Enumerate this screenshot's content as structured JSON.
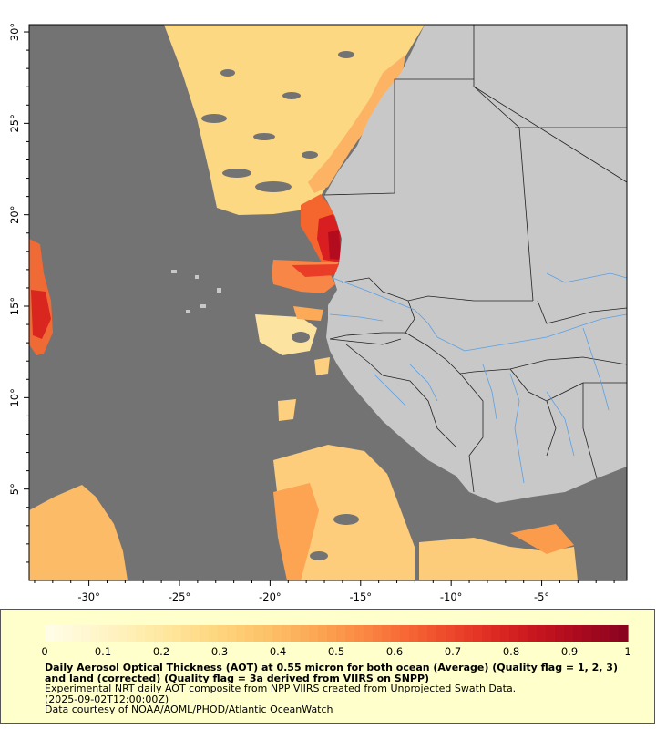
{
  "map": {
    "x_ticks": [
      {
        "value": -30,
        "label": "-30°"
      },
      {
        "value": -25,
        "label": "-25°"
      },
      {
        "value": -20,
        "label": "-20°"
      },
      {
        "value": -15,
        "label": "-15°"
      },
      {
        "value": -10,
        "label": "-10°"
      },
      {
        "value": -5,
        "label": "-5°"
      }
    ],
    "y_ticks": [
      {
        "value": 30,
        "label": "30°"
      },
      {
        "value": 25,
        "label": "25°"
      },
      {
        "value": 20,
        "label": "20°"
      },
      {
        "value": 15,
        "label": "15°"
      },
      {
        "value": 10,
        "label": "10°"
      },
      {
        "value": 5,
        "label": "5°"
      }
    ],
    "colors": {
      "no_data": "#737373",
      "land": "#c8c8c8",
      "border": "#222222",
      "river": "#5aa0e6"
    }
  },
  "colorbar": {
    "tick_labels": [
      "0",
      "0.1",
      "0.2",
      "0.3",
      "0.4",
      "0.5",
      "0.6",
      "0.7",
      "0.8",
      "0.9",
      "1"
    ],
    "colors": [
      "#fffde6",
      "#fff6cc",
      "#ffeeb0",
      "#ffe294",
      "#fed27a",
      "#fdc066",
      "#fca855",
      "#fb8c44",
      "#f76a36",
      "#ee4a2c",
      "#df2c24",
      "#c8161f",
      "#ab0a1f",
      "#8a0420"
    ]
  },
  "caption": {
    "title": "Daily Aerosol Optical Thickness (AOT) at 0.55 micron for both ocean (Average) (Quality flag = 1, 2, 3) and land (corrected) (Quality flag = 3a derived from VIIRS on SNPP)",
    "line1": "Experimental NRT daily AOT composite from NPP VIIRS created from Unprojected Swath Data.",
    "line2": "(2025-09-02T12:00:00Z)",
    "line3": "Data courtesy of NOAA/AOML/PHOD/Atlantic OceanWatch"
  }
}
